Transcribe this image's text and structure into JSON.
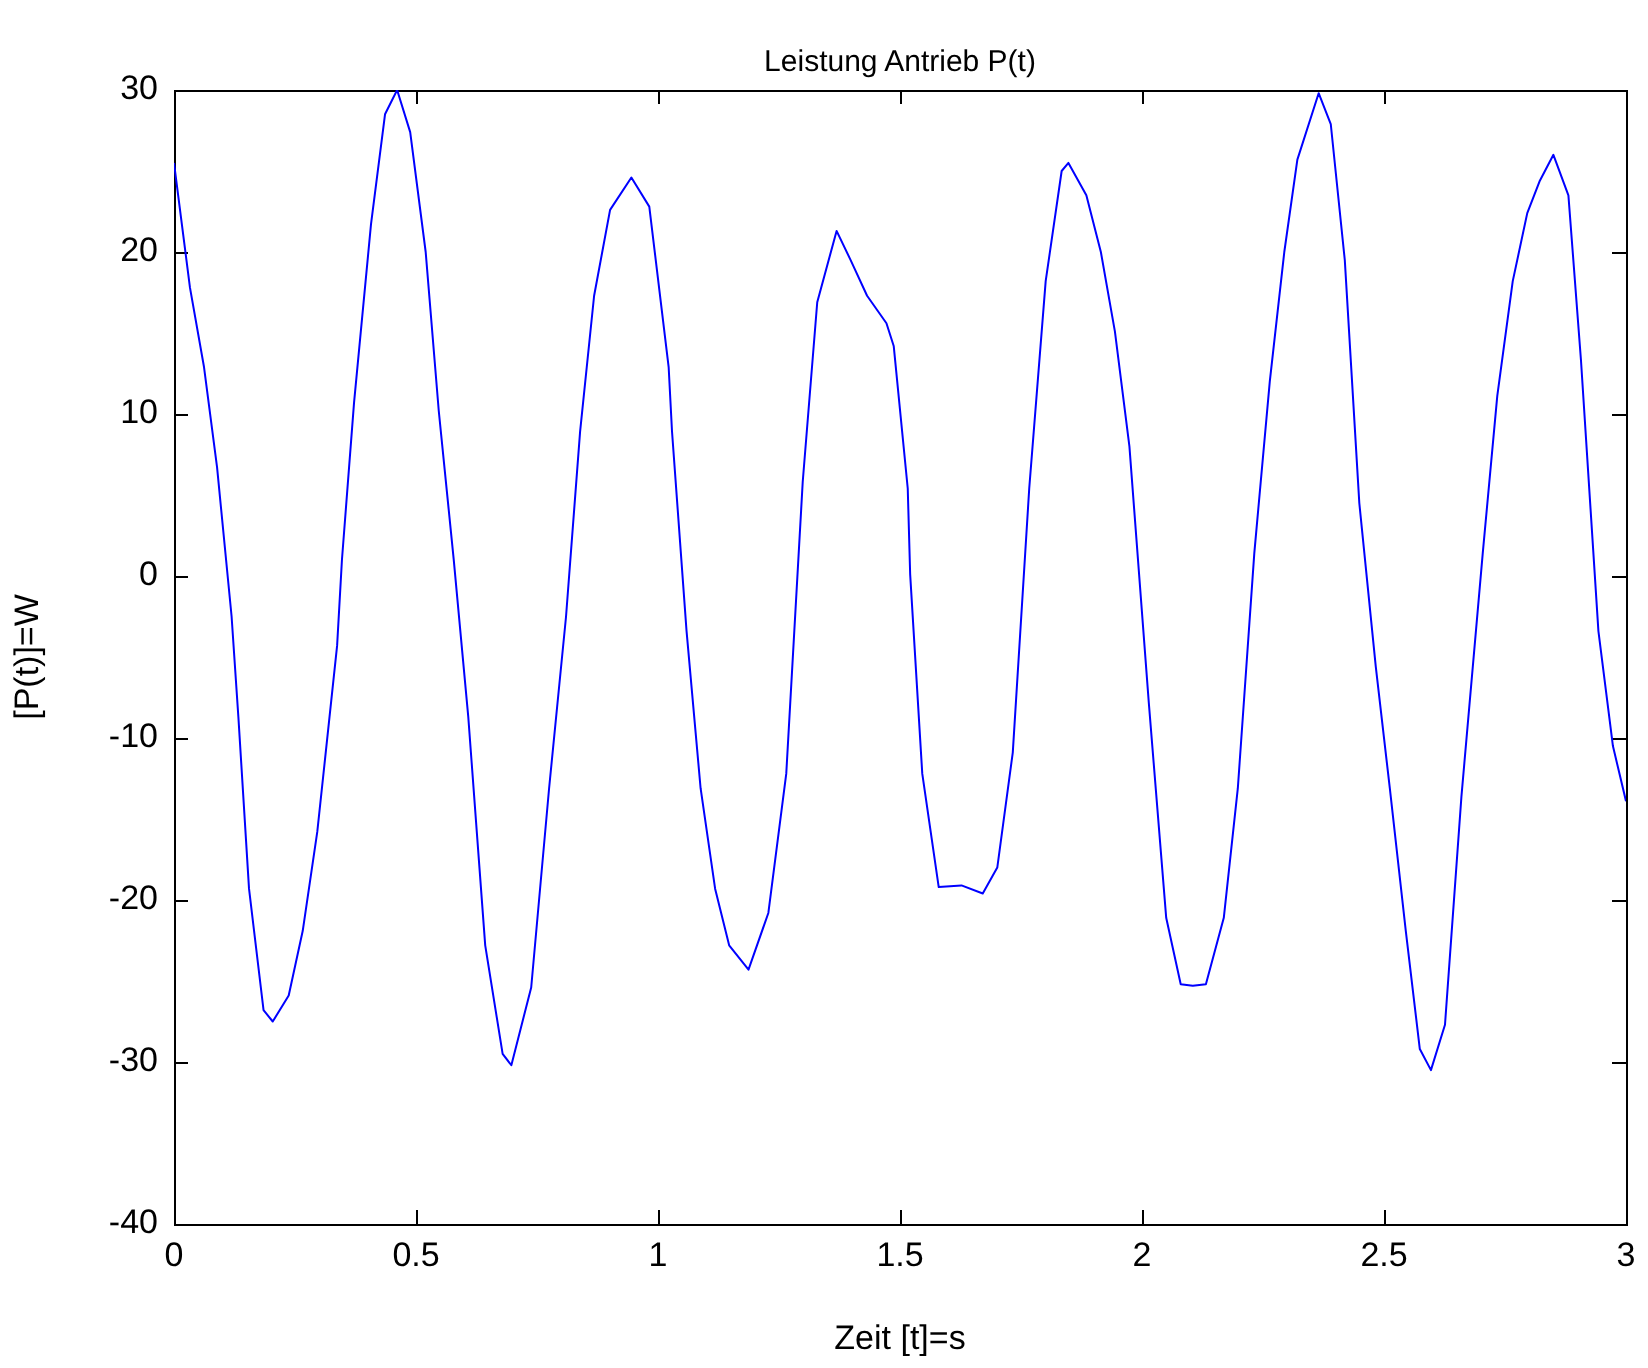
{
  "chart_data": {
    "type": "line",
    "title": "Leistung Antrieb P(t)",
    "xlabel": "Zeit [t]=s",
    "ylabel": "[P(t)]=W",
    "xlim": [
      0,
      3
    ],
    "xticks": [
      0,
      0.5,
      1,
      1.5,
      2,
      2.5,
      3
    ],
    "ylim": [
      -40,
      30
    ],
    "yticks": [
      -40,
      -30,
      -20,
      -10,
      0,
      10,
      20,
      30
    ],
    "grid": false,
    "legend": false,
    "marker": "none",
    "line_style": "solid",
    "series": [
      {
        "color": "#0000ff",
        "x": [
          0,
          0.033,
          0.062,
          0.089,
          0.119,
          0.133,
          0.155,
          0.185,
          0.204,
          0.237,
          0.266,
          0.296,
          0.337,
          0.347,
          0.372,
          0.407,
          0.436,
          0.461,
          0.488,
          0.52,
          0.547,
          0.578,
          0.608,
          0.643,
          0.679,
          0.697,
          0.738,
          0.775,
          0.81,
          0.839,
          0.868,
          0.901,
          0.945,
          0.982,
          1.022,
          1.029,
          1.059,
          1.088,
          1.118,
          1.147,
          1.187,
          1.228,
          1.265,
          1.299,
          1.329,
          1.369,
          1.398,
          1.432,
          1.472,
          1.487,
          1.516,
          1.521,
          1.546,
          1.58,
          1.627,
          1.671,
          1.701,
          1.733,
          1.767,
          1.801,
          1.834,
          1.848,
          1.885,
          1.915,
          1.944,
          1.974,
          2.014,
          2.05,
          2.08,
          2.105,
          2.132,
          2.169,
          2.198,
          2.232,
          2.264,
          2.294,
          2.321,
          2.365,
          2.39,
          2.419,
          2.449,
          2.483,
          2.512,
          2.545,
          2.574,
          2.597,
          2.626,
          2.66,
          2.704,
          2.734,
          2.766,
          2.796,
          2.822,
          2.85,
          2.881,
          2.907,
          2.943,
          2.973,
          3.0
        ],
        "values": [
          25.5,
          17.8,
          12.9,
          6.7,
          -2.5,
          -8.7,
          -19.3,
          -26.8,
          -27.5,
          -25.9,
          -21.9,
          -15.8,
          -4.3,
          1,
          10.7,
          21.7,
          28.5,
          30,
          27.4,
          20,
          10.2,
          1,
          -8.7,
          -22.8,
          -29.5,
          -30.2,
          -25.4,
          -13.1,
          -2.5,
          8.9,
          17.3,
          22.6,
          24.6,
          22.8,
          12.9,
          8.9,
          -3.4,
          -13.1,
          -19.3,
          -22.8,
          -24.3,
          -20.8,
          -12.2,
          5.8,
          16.9,
          21.3,
          19.5,
          17.3,
          15.6,
          14.2,
          5.4,
          0.1,
          -12.2,
          -19.2,
          -19.1,
          -19.6,
          -18,
          -10.9,
          5.4,
          18.2,
          25,
          25.5,
          23.5,
          20,
          15.1,
          8,
          -7.8,
          -21.1,
          -25.2,
          -25.3,
          -25.2,
          -21.1,
          -13.1,
          1.4,
          12,
          20,
          25.7,
          29.8,
          27.9,
          19.5,
          4.5,
          -5.6,
          -13.1,
          -21.9,
          -29.2,
          -30.5,
          -27.7,
          -13.6,
          1.4,
          11.1,
          18.2,
          22.4,
          24.4,
          26,
          23.5,
          13.3,
          -3.4,
          -10.5,
          -13.9
        ]
      }
    ]
  }
}
